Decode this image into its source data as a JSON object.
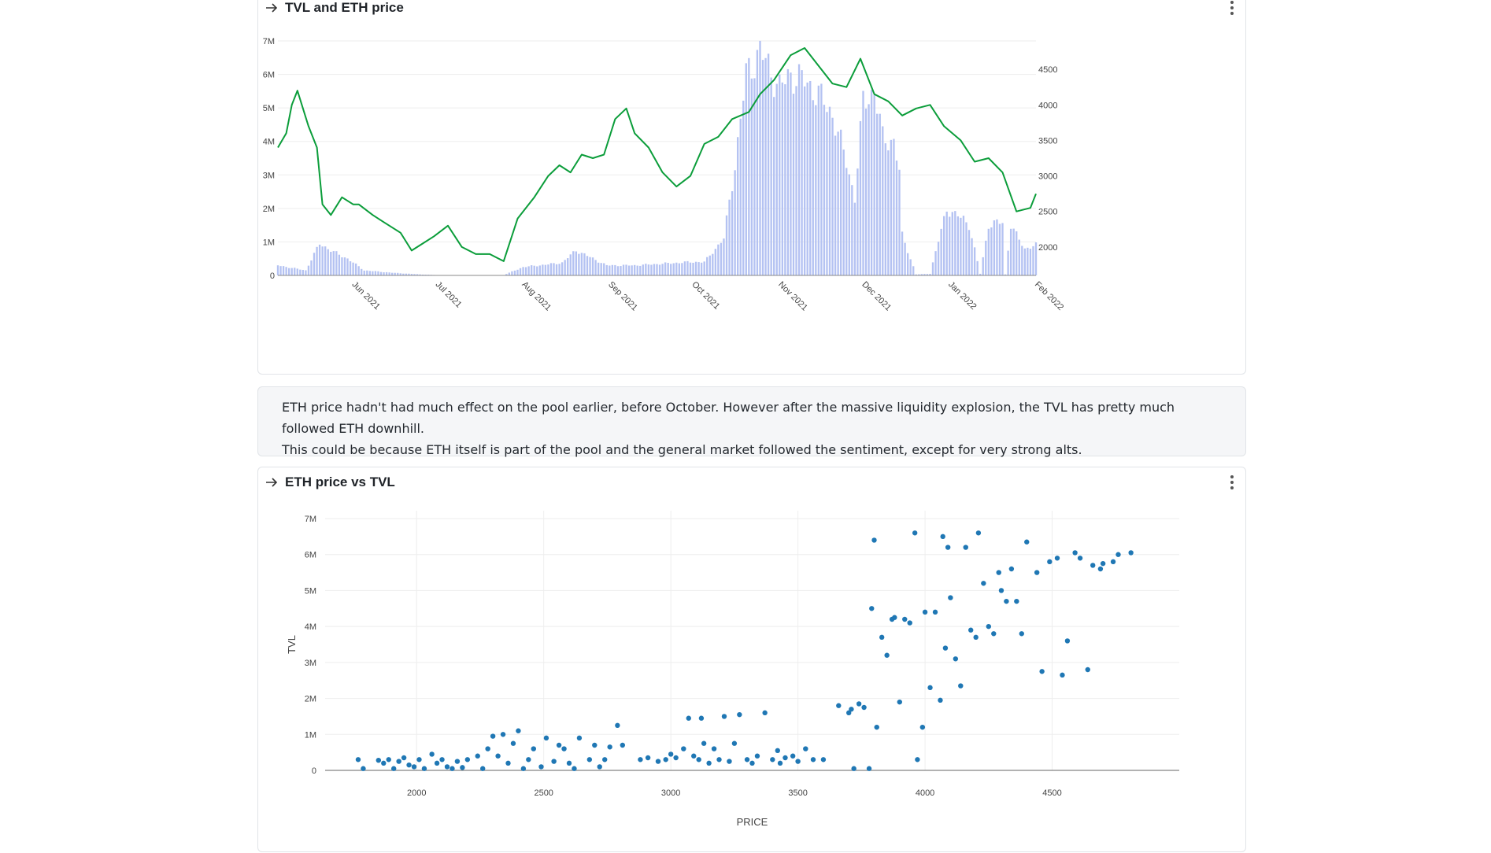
{
  "card1": {
    "title": "TVL and ETH price",
    "menu_icon": "vertical-dots-icon",
    "arrow_icon": "arrow-right-icon"
  },
  "note": {
    "line1": "ETH price hadn't had much effect on the pool earlier, before October. However after the massive liquidity explosion, the TVL has pretty much followed ETH downhill.",
    "line2": "This could be because ETH itself is part of the pool and the general market followed the sentiment, except for very strong alts."
  },
  "card2": {
    "title": "ETH price vs TVL",
    "menu_icon": "vertical-dots-icon",
    "arrow_icon": "arrow-right-icon"
  },
  "colors": {
    "bars": "#b4c2f2",
    "line": "#0b9d3a",
    "points": "#1f77b4",
    "grid": "#eeeeee"
  },
  "chart_data": [
    {
      "type": "bar+line",
      "title": "TVL and ETH price",
      "x_start": "2021-05-05",
      "x_end": "2022-02-01",
      "x_ticks": [
        "Jun 2021",
        "Jul 2021",
        "Aug 2021",
        "Sep 2021",
        "Oct 2021",
        "Nov 2021",
        "Dec 2021",
        "Jan 2022",
        "Feb 2022"
      ],
      "y_left_ticks": [
        "0",
        "1M",
        "2M",
        "3M",
        "4M",
        "5M",
        "6M",
        "7M"
      ],
      "y_left_range": [
        0,
        7000000
      ],
      "y_right_ticks": [
        "2000",
        "2500",
        "3000",
        "3500",
        "4000",
        "4500"
      ],
      "y_right_range": [
        1600,
        4900
      ],
      "grid": true,
      "tvl_series": {
        "type": "bar",
        "dates": [
          "2021-05-05",
          "2021-05-15",
          "2021-05-20",
          "2021-05-25",
          "2021-05-30",
          "2021-06-05",
          "2021-06-15",
          "2021-06-25",
          "2021-07-01",
          "2021-07-10",
          "2021-07-20",
          "2021-07-25",
          "2021-08-01",
          "2021-08-10",
          "2021-08-15",
          "2021-08-20",
          "2021-08-31",
          "2021-09-10",
          "2021-09-20",
          "2021-09-30",
          "2021-10-05",
          "2021-10-12",
          "2021-10-16",
          "2021-10-20",
          "2021-10-25",
          "2021-11-01",
          "2021-11-05",
          "2021-11-10",
          "2021-11-15",
          "2021-11-20",
          "2021-11-25",
          "2021-11-28",
          "2021-12-01",
          "2021-12-05",
          "2021-12-08",
          "2021-12-12",
          "2021-12-14",
          "2021-12-15",
          "2021-12-20",
          "2021-12-25",
          "2021-12-31",
          "2022-01-03",
          "2022-01-06",
          "2022-01-08",
          "2022-01-12",
          "2022-01-15",
          "2022-01-20",
          "2022-01-21",
          "2022-01-23",
          "2022-01-25",
          "2022-01-28",
          "2022-02-01"
        ],
        "values": [
          300000,
          150000,
          950000,
          700000,
          500000,
          150000,
          80000,
          30000,
          10000,
          5000,
          10000,
          10000,
          250000,
          330000,
          380000,
          750000,
          300000,
          300000,
          350000,
          400000,
          400000,
          1100000,
          3300000,
          6000000,
          6700000,
          5600000,
          6000000,
          5800000,
          5400000,
          4800000,
          3400000,
          2300000,
          5200000,
          5500000,
          4100000,
          4000000,
          3100000,
          1200000,
          30000,
          50000,
          2000000,
          1800000,
          1700000,
          1500000,
          50000,
          1500000,
          1600000,
          30000,
          1500000,
          1200000,
          800000,
          900000
        ]
      },
      "price_series": {
        "type": "line",
        "dates": [
          "2021-05-05",
          "2021-05-08",
          "2021-05-10",
          "2021-05-12",
          "2021-05-16",
          "2021-05-19",
          "2021-05-21",
          "2021-05-24",
          "2021-05-28",
          "2021-06-01",
          "2021-06-03",
          "2021-06-08",
          "2021-06-12",
          "2021-06-18",
          "2021-06-22",
          "2021-06-26",
          "2021-06-30",
          "2021-07-05",
          "2021-07-10",
          "2021-07-15",
          "2021-07-20",
          "2021-07-25",
          "2021-07-30",
          "2021-08-05",
          "2021-08-10",
          "2021-08-14",
          "2021-08-18",
          "2021-08-22",
          "2021-08-26",
          "2021-08-30",
          "2021-09-03",
          "2021-09-07",
          "2021-09-10",
          "2021-09-15",
          "2021-09-20",
          "2021-09-25",
          "2021-09-30",
          "2021-10-05",
          "2021-10-10",
          "2021-10-15",
          "2021-10-21",
          "2021-10-25",
          "2021-10-30",
          "2021-11-05",
          "2021-11-10",
          "2021-11-15",
          "2021-11-20",
          "2021-11-25",
          "2021-11-30",
          "2021-12-05",
          "2021-12-10",
          "2021-12-15",
          "2021-12-20",
          "2021-12-25",
          "2021-12-30",
          "2022-01-05",
          "2022-01-10",
          "2022-01-15",
          "2022-01-20",
          "2022-01-25",
          "2022-01-30",
          "2022-02-01"
        ],
        "values": [
          3400,
          3600,
          4000,
          4200,
          3700,
          3400,
          2600,
          2450,
          2700,
          2600,
          2600,
          2450,
          2350,
          2200,
          1950,
          2050,
          2150,
          2300,
          2000,
          1900,
          1900,
          1800,
          2400,
          2700,
          3000,
          3150,
          3050,
          3300,
          3250,
          3300,
          3800,
          3950,
          3600,
          3400,
          3050,
          2850,
          3000,
          3450,
          3550,
          3800,
          3900,
          4150,
          4350,
          4700,
          4800,
          4550,
          4300,
          4250,
          4650,
          4150,
          4050,
          3850,
          3950,
          4000,
          3700,
          3500,
          3200,
          3250,
          3050,
          2500,
          2550,
          2750
        ]
      }
    },
    {
      "type": "scatter",
      "title": "ETH price vs TVL",
      "xlabel": "PRICE",
      "ylabel": "TVL",
      "x_ticks": [
        "2000",
        "2500",
        "3000",
        "3500",
        "4000",
        "4500"
      ],
      "y_ticks": [
        "0",
        "1M",
        "2M",
        "3M",
        "4M",
        "5M",
        "6M",
        "7M"
      ],
      "xlim": [
        1640,
        5000
      ],
      "ylim": [
        0,
        7000000
      ],
      "grid": true,
      "x": [
        1770,
        1790,
        1850,
        1870,
        1890,
        1910,
        1930,
        1950,
        1970,
        1990,
        2010,
        2030,
        2060,
        2080,
        2100,
        2120,
        2140,
        2160,
        2180,
        2200,
        2240,
        2260,
        2280,
        2300,
        2320,
        2340,
        2360,
        2380,
        2400,
        2420,
        2440,
        2460,
        2490,
        2510,
        2540,
        2560,
        2580,
        2600,
        2620,
        2640,
        2680,
        2700,
        2720,
        2740,
        2760,
        2790,
        2810,
        2880,
        2910,
        2950,
        2980,
        3000,
        3020,
        3050,
        3070,
        3090,
        3110,
        3120,
        3130,
        3150,
        3170,
        3190,
        3210,
        3230,
        3250,
        3270,
        3300,
        3320,
        3340,
        3370,
        3400,
        3420,
        3430,
        3450,
        3480,
        3500,
        3530,
        3560,
        3600,
        3660,
        3700,
        3710,
        3720,
        3740,
        3760,
        3780,
        3790,
        3800,
        3810,
        3830,
        3850,
        3870,
        3880,
        3900,
        3920,
        3940,
        3960,
        3970,
        3990,
        4000,
        4020,
        4040,
        4060,
        4070,
        4080,
        4090,
        4100,
        4120,
        4140,
        4160,
        4180,
        4200,
        4210,
        4230,
        4250,
        4270,
        4290,
        4300,
        4320,
        4340,
        4360,
        4380,
        4400,
        4440,
        4460,
        4490,
        4520,
        4540,
        4560,
        4590,
        4610,
        4640,
        4660,
        4690,
        4700,
        4740,
        4760,
        4810
      ],
      "y": [
        300000,
        50000,
        280000,
        200000,
        300000,
        50000,
        250000,
        350000,
        150000,
        100000,
        300000,
        50000,
        450000,
        200000,
        300000,
        100000,
        50000,
        250000,
        80000,
        300000,
        400000,
        50000,
        600000,
        950000,
        400000,
        1000000,
        200000,
        750000,
        1100000,
        50000,
        300000,
        600000,
        100000,
        900000,
        250000,
        700000,
        600000,
        200000,
        50000,
        900000,
        300000,
        700000,
        100000,
        300000,
        650000,
        1250000,
        700000,
        300000,
        350000,
        250000,
        300000,
        450000,
        350000,
        600000,
        1450000,
        400000,
        300000,
        1450000,
        750000,
        200000,
        600000,
        300000,
        1500000,
        250000,
        750000,
        1550000,
        300000,
        200000,
        400000,
        1600000,
        300000,
        550000,
        200000,
        350000,
        400000,
        250000,
        600000,
        300000,
        300000,
        1800000,
        1600000,
        1700000,
        50000,
        1850000,
        1750000,
        50000,
        4500000,
        6400000,
        1200000,
        3700000,
        3200000,
        4200000,
        4250000,
        1900000,
        4200000,
        4100000,
        6600000,
        300000,
        1200000,
        4400000,
        2300000,
        4400000,
        1950000,
        6500000,
        3400000,
        6200000,
        4800000,
        3100000,
        2350000,
        6200000,
        3900000,
        3700000,
        6600000,
        5200000,
        4000000,
        3800000,
        5500000,
        5000000,
        4700000,
        5600000,
        4700000,
        3800000,
        6350000,
        5500000,
        2750000,
        5800000,
        5900000,
        2650000,
        3600000,
        6050000,
        5900000,
        2800000,
        5700000,
        5600000,
        5750000,
        5800000,
        6000000,
        6050000
      ]
    }
  ]
}
